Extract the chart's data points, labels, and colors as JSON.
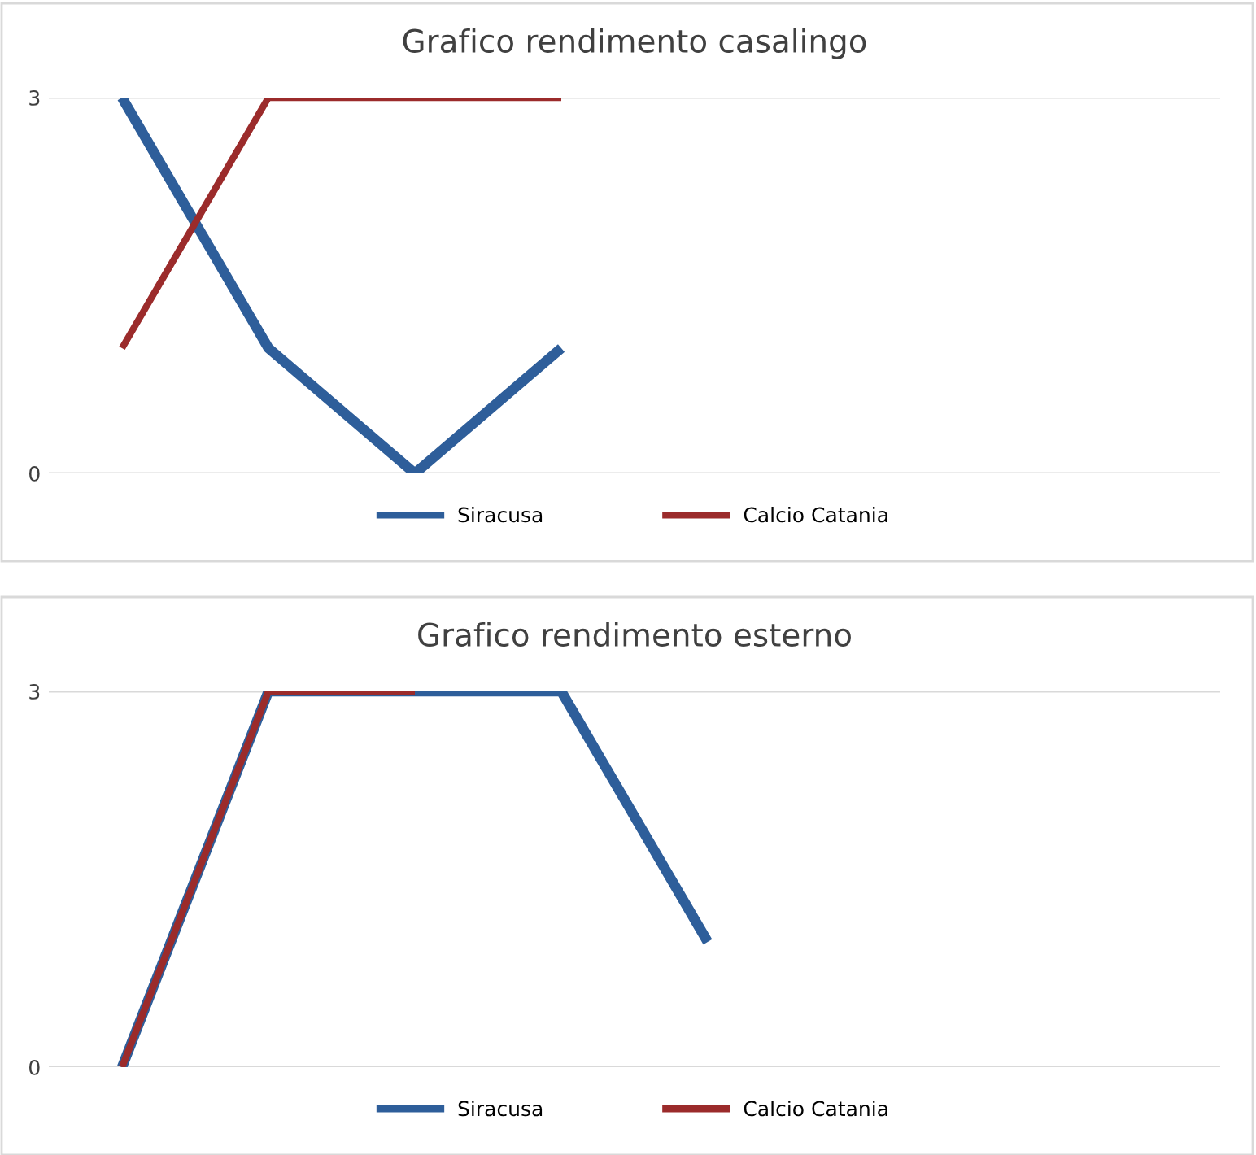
{
  "chart_data": [
    {
      "type": "line",
      "title": "Grafico rendimento casalingo",
      "categories": [
        null,
        null,
        null,
        null,
        null,
        null,
        null,
        null
      ],
      "series": [
        {
          "name": "Siracusa",
          "color": "#2e5e9a",
          "values": [
            3,
            1,
            0,
            1,
            null,
            null,
            null,
            null
          ]
        },
        {
          "name": "Calcio Catania",
          "color": "#9b2b2b",
          "values": [
            1,
            3,
            3,
            3,
            null,
            null,
            null,
            null
          ]
        }
      ],
      "ylim": [
        0,
        3
      ],
      "yticks": [
        0,
        3
      ],
      "grid": "y",
      "legend": "bottom",
      "marker": "none",
      "line_style": "solid"
    },
    {
      "type": "line",
      "title": "Grafico rendimento esterno",
      "categories": [
        null,
        null,
        null,
        null,
        null,
        null,
        null,
        null
      ],
      "series": [
        {
          "name": "Siracusa",
          "color": "#2e5e9a",
          "values": [
            0,
            3,
            3,
            3,
            1,
            null,
            null,
            null
          ]
        },
        {
          "name": "Calcio Catania",
          "color": "#9b2b2b",
          "values": [
            0,
            3,
            3,
            null,
            null,
            null,
            null,
            null
          ]
        }
      ],
      "ylim": [
        0,
        3
      ],
      "yticks": [
        0,
        3
      ],
      "grid": "y",
      "legend": "bottom",
      "marker": "none",
      "line_style": "solid"
    }
  ]
}
